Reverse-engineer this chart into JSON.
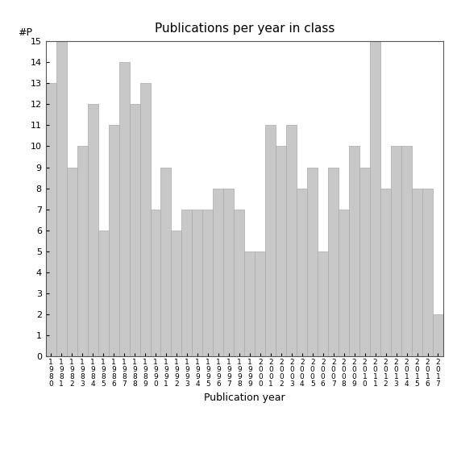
{
  "title": "Publications per year in class",
  "xlabel": "Publication year",
  "ylabel": "#P",
  "bar_color": "#c8c8c8",
  "bar_edgecolor": "#aaaaaa",
  "background_color": "#ffffff",
  "ylim": [
    0,
    15
  ],
  "yticks": [
    0,
    1,
    2,
    3,
    4,
    5,
    6,
    7,
    8,
    9,
    10,
    11,
    12,
    13,
    14,
    15
  ],
  "years": [
    1980,
    1981,
    1982,
    1983,
    1984,
    1985,
    1986,
    1987,
    1988,
    1989,
    1990,
    1991,
    1992,
    1993,
    1994,
    1995,
    1996,
    1997,
    1998,
    1999,
    2000,
    2001,
    2002,
    2003,
    2004,
    2005,
    2006,
    2007,
    2008,
    2009,
    2010,
    2011,
    2012,
    2013,
    2014,
    2015,
    2016,
    2017
  ],
  "values": [
    13,
    15,
    9,
    10,
    12,
    6,
    11,
    14,
    12,
    13,
    7,
    9,
    6,
    7,
    7,
    7,
    8,
    8,
    7,
    5,
    5,
    11,
    10,
    11,
    8,
    9,
    5,
    9,
    7,
    10,
    9,
    15,
    8,
    10,
    10,
    8,
    8,
    2
  ]
}
